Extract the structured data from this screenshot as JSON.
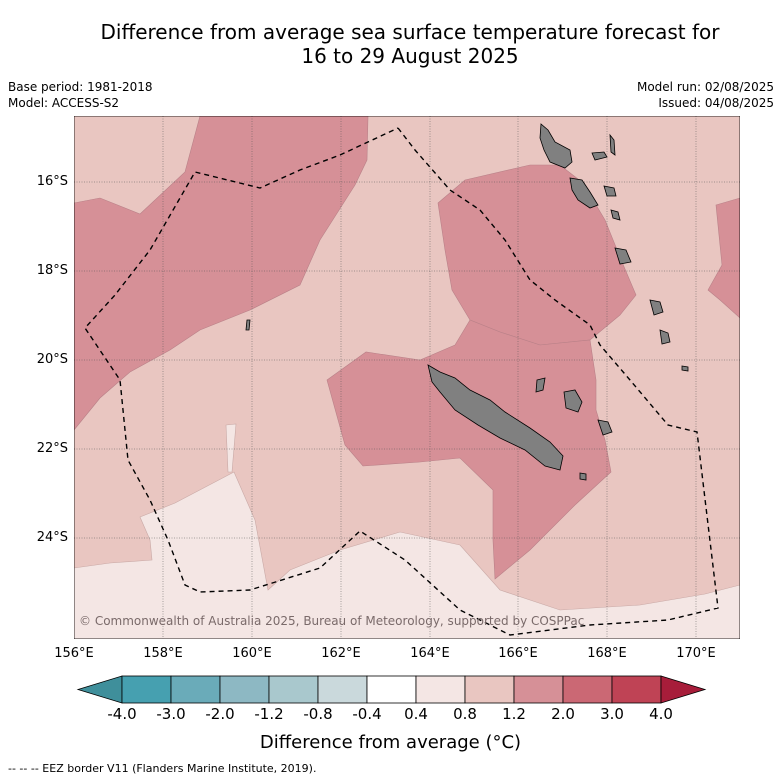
{
  "title_line1": "Difference from average sea surface temperature forecast for",
  "title_line2": "16 to 29 August 2025",
  "base_period": "Base period: 1981-2018",
  "model": "Model: ACCESS-S2",
  "model_run": "Model run: 02/08/2025",
  "issued": "Issued: 04/08/2025",
  "copyright": "© Commonwealth of Australia 2025, Bureau of Meteorology, supported by COSPPac",
  "lat_labels": [
    "16°S",
    "18°S",
    "20°S",
    "22°S",
    "24°S"
  ],
  "lon_labels": [
    "156°E",
    "158°E",
    "160°E",
    "162°E",
    "164°E",
    "166°E",
    "168°E",
    "170°E"
  ],
  "colorbar": {
    "title": "Difference from average (°C)",
    "ticks": [
      "-4.0",
      "-3.0",
      "-2.0",
      "-1.2",
      "-0.8",
      "-0.4",
      "0.4",
      "0.8",
      "1.2",
      "2.0",
      "3.0",
      "4.0"
    ],
    "colors": [
      "#3f8f9b",
      "#46a0b0",
      "#6aabb9",
      "#8db8c3",
      "#a9c8cd",
      "#cad9dc",
      "#ffffff",
      "#f4e6e4",
      "#e9c6c1",
      "#d69097",
      "#cb6874",
      "#bf4355",
      "#a71d3a"
    ]
  },
  "footnote": "--  --  -- EEZ border V11 (Flanders Marine Institute, 2019)."
}
